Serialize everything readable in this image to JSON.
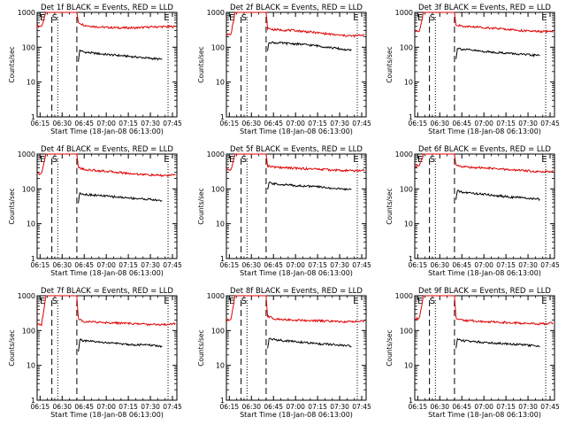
{
  "chart_data": [
    {
      "type": "line",
      "title": "Det 1f BLACK = Events, RED = LLD",
      "xlabel": "Start Time (18-Jan-08 06:13:00)",
      "ylabel": "Counts/sec",
      "yscale": "log",
      "ylim": [
        1,
        1000
      ],
      "xticks": [
        "06:15",
        "06:30",
        "06:45",
        "07:00",
        "07:15",
        "07:30",
        "07:45"
      ],
      "yticks": [
        "1",
        "10",
        "100",
        "1000"
      ],
      "markers": {
        "S": "06:25",
        "E": "07:41"
      },
      "dashed_lines": [
        "06:23",
        "06:40"
      ],
      "dotted_lines": [
        "06:27",
        "07:42"
      ],
      "series": [
        {
          "color": "#e00000",
          "x": [
            "06:13",
            "06:16",
            "06:18",
            "06:19",
            "06:20",
            "06:21",
            "06:40",
            "06:41",
            "06:45",
            "06:50",
            "07:00",
            "07:10",
            "07:20",
            "07:30",
            "07:40",
            "07:47"
          ],
          "values": [
            400,
            400,
            700,
            1000,
            1000,
            1000,
            1000,
            520,
            430,
            400,
            370,
            360,
            360,
            380,
            390,
            390
          ]
        },
        {
          "color": "#000000",
          "x": [
            "06:41",
            "06:42",
            "06:45",
            "07:00",
            "07:15",
            "07:30",
            "07:38"
          ],
          "values": [
            40,
            82,
            72,
            62,
            55,
            48,
            45
          ]
        }
      ]
    },
    {
      "type": "line",
      "title": "Det 2f BLACK = Events, RED = LLD",
      "xlabel": "Start Time (18-Jan-08 06:13:00)",
      "ylabel": "Counts/sec",
      "yscale": "log",
      "ylim": [
        1,
        1000
      ],
      "xticks": [
        "06:15",
        "06:30",
        "06:45",
        "07:00",
        "07:15",
        "07:30",
        "07:45"
      ],
      "yticks": [
        "1",
        "10",
        "100",
        "1000"
      ],
      "markers": {
        "S": "06:25",
        "E": "07:41"
      },
      "dashed_lines": [
        "06:23",
        "06:40"
      ],
      "dotted_lines": [
        "06:27",
        "07:42"
      ],
      "series": [
        {
          "color": "#e00000",
          "x": [
            "06:13",
            "06:16",
            "06:18",
            "06:19",
            "06:20",
            "06:21",
            "06:40",
            "06:41",
            "06:45",
            "07:00",
            "07:15",
            "07:30",
            "07:40",
            "07:47"
          ],
          "values": [
            230,
            230,
            600,
            1000,
            1000,
            1000,
            1000,
            350,
            320,
            300,
            260,
            220,
            210,
            230
          ]
        },
        {
          "color": "#000000",
          "x": [
            "06:41",
            "06:42",
            "06:45",
            "07:00",
            "07:15",
            "07:30",
            "07:38"
          ],
          "values": [
            80,
            140,
            135,
            125,
            110,
            90,
            80
          ]
        }
      ]
    },
    {
      "type": "line",
      "title": "Det 3f BLACK = Events, RED = LLD",
      "xlabel": "Start Time (18-Jan-08 06:13:00)",
      "ylabel": "Counts/sec",
      "yscale": "log",
      "ylim": [
        1,
        1000
      ],
      "xticks": [
        "06:15",
        "06:30",
        "06:45",
        "07:00",
        "07:15",
        "07:30",
        "07:45"
      ],
      "yticks": [
        "1",
        "10",
        "100",
        "1000"
      ],
      "markers": {
        "S": "06:25",
        "E": "07:41"
      },
      "dashed_lines": [
        "06:23",
        "06:40"
      ],
      "dotted_lines": [
        "06:27",
        "07:42"
      ],
      "series": [
        {
          "color": "#e00000",
          "x": [
            "06:13",
            "06:16",
            "06:18",
            "06:19",
            "06:20",
            "06:21",
            "06:40",
            "06:41",
            "06:45",
            "07:00",
            "07:15",
            "07:30",
            "07:40",
            "07:47"
          ],
          "values": [
            280,
            280,
            650,
            1000,
            1000,
            1000,
            1000,
            450,
            400,
            370,
            330,
            290,
            280,
            290
          ]
        },
        {
          "color": "#000000",
          "x": [
            "06:41",
            "06:42",
            "06:45",
            "07:00",
            "07:15",
            "07:30",
            "07:38"
          ],
          "values": [
            45,
            95,
            88,
            75,
            68,
            60,
            58
          ]
        }
      ]
    },
    {
      "type": "line",
      "title": "Det 4f BLACK = Events, RED = LLD",
      "xlabel": "Start Time (18-Jan-08 06:13:00)",
      "ylabel": "Counts/sec",
      "yscale": "log",
      "ylim": [
        1,
        1000
      ],
      "xticks": [
        "06:15",
        "06:30",
        "06:45",
        "07:00",
        "07:15",
        "07:30",
        "07:45"
      ],
      "yticks": [
        "1",
        "10",
        "100",
        "1000"
      ],
      "markers": {
        "S": "06:25",
        "E": "07:41"
      },
      "dashed_lines": [
        "06:23",
        "06:40"
      ],
      "dotted_lines": [
        "06:27",
        "07:42"
      ],
      "series": [
        {
          "color": "#e00000",
          "x": [
            "06:13",
            "06:16",
            "06:18",
            "06:19",
            "06:20",
            "06:21",
            "06:40",
            "06:41",
            "06:45",
            "07:00",
            "07:15",
            "07:30",
            "07:40",
            "07:47"
          ],
          "values": [
            270,
            270,
            650,
            1000,
            1000,
            1000,
            1000,
            420,
            360,
            320,
            280,
            250,
            240,
            250
          ]
        },
        {
          "color": "#000000",
          "x": [
            "06:41",
            "06:42",
            "06:45",
            "07:00",
            "07:15",
            "07:30",
            "07:38"
          ],
          "values": [
            40,
            78,
            70,
            62,
            55,
            50,
            45
          ]
        }
      ]
    },
    {
      "type": "line",
      "title": "Det 5f BLACK = Events, RED = LLD",
      "xlabel": "Start Time (18-Jan-08 06:13:00)",
      "ylabel": "Counts/sec",
      "yscale": "log",
      "ylim": [
        1,
        1000
      ],
      "xticks": [
        "06:15",
        "06:30",
        "06:45",
        "07:00",
        "07:15",
        "07:30",
        "07:45"
      ],
      "yticks": [
        "1",
        "10",
        "100",
        "1000"
      ],
      "markers": {
        "S": "06:25",
        "E": "07:41"
      },
      "dashed_lines": [
        "06:23",
        "06:40"
      ],
      "dotted_lines": [
        "06:27",
        "07:42"
      ],
      "series": [
        {
          "color": "#e00000",
          "x": [
            "06:13",
            "06:16",
            "06:18",
            "06:19",
            "06:20",
            "06:21",
            "06:40",
            "06:41",
            "06:45",
            "07:00",
            "07:15",
            "07:30",
            "07:40",
            "07:47"
          ],
          "values": [
            350,
            350,
            700,
            1000,
            1000,
            1000,
            1000,
            460,
            420,
            390,
            370,
            340,
            330,
            340
          ]
        },
        {
          "color": "#000000",
          "x": [
            "06:41",
            "06:42",
            "06:45",
            "07:00",
            "07:15",
            "07:30",
            "07:38"
          ],
          "values": [
            90,
            150,
            140,
            125,
            115,
            100,
            95
          ]
        }
      ]
    },
    {
      "type": "line",
      "title": "Det 6f BLACK = Events, RED = LLD",
      "xlabel": "Start Time (18-Jan-08 06:13:00)",
      "ylabel": "Counts/sec",
      "yscale": "log",
      "ylim": [
        1,
        1000
      ],
      "xticks": [
        "06:15",
        "06:30",
        "06:45",
        "07:00",
        "07:15",
        "07:30",
        "07:45"
      ],
      "yticks": [
        "1",
        "10",
        "100",
        "1000"
      ],
      "markers": {
        "S": "06:25",
        "E": "07:41"
      },
      "dashed_lines": [
        "06:23",
        "06:40"
      ],
      "dotted_lines": [
        "06:27",
        "07:42"
      ],
      "series": [
        {
          "color": "#e00000",
          "x": [
            "06:13",
            "06:16",
            "06:18",
            "06:19",
            "06:20",
            "06:21",
            "06:40",
            "06:41",
            "06:45",
            "07:00",
            "07:15",
            "07:30",
            "07:40",
            "07:47"
          ],
          "values": [
            450,
            450,
            750,
            1000,
            1000,
            1000,
            1000,
            480,
            430,
            400,
            360,
            330,
            310,
            320
          ]
        },
        {
          "color": "#000000",
          "x": [
            "06:41",
            "06:42",
            "06:45",
            "07:00",
            "07:15",
            "07:30",
            "07:38"
          ],
          "values": [
            50,
            88,
            80,
            70,
            60,
            54,
            50
          ]
        }
      ]
    },
    {
      "type": "line",
      "title": "Det 7f BLACK = Events, RED = LLD",
      "xlabel": "Start Time (18-Jan-08 06:13:00)",
      "ylabel": "Counts/sec",
      "yscale": "log",
      "ylim": [
        1,
        1000
      ],
      "xticks": [
        "06:15",
        "06:30",
        "06:45",
        "07:00",
        "07:15",
        "07:30",
        "07:45"
      ],
      "yticks": [
        "1",
        "10",
        "100",
        "1000"
      ],
      "markers": {
        "S": "06:25",
        "E": "07:41"
      },
      "dashed_lines": [
        "06:23",
        "06:40"
      ],
      "dotted_lines": [
        "06:27",
        "07:42"
      ],
      "series": [
        {
          "color": "#e00000",
          "x": [
            "06:13",
            "06:16",
            "06:18",
            "06:19",
            "06:20",
            "06:21",
            "06:40",
            "06:41",
            "06:45",
            "07:00",
            "07:15",
            "07:30",
            "07:40",
            "07:47"
          ],
          "values": [
            150,
            150,
            500,
            1000,
            1000,
            1000,
            1000,
            220,
            180,
            170,
            160,
            150,
            150,
            160
          ]
        },
        {
          "color": "#000000",
          "x": [
            "06:41",
            "06:42",
            "06:45",
            "07:00",
            "07:15",
            "07:30",
            "07:38"
          ],
          "values": [
            25,
            55,
            50,
            45,
            40,
            38,
            35
          ]
        }
      ]
    },
    {
      "type": "line",
      "title": "Det 8f BLACK = Events, RED = LLD",
      "xlabel": "Start Time (18-Jan-08 06:13:00)",
      "ylabel": "Counts/sec",
      "yscale": "log",
      "ylim": [
        1,
        1000
      ],
      "xticks": [
        "06:15",
        "06:30",
        "06:45",
        "07:00",
        "07:15",
        "07:30",
        "07:45"
      ],
      "yticks": [
        "1",
        "10",
        "100",
        "1000"
      ],
      "markers": {
        "S": "06:25",
        "E": "07:41"
      },
      "dashed_lines": [
        "06:23",
        "06:40"
      ],
      "dotted_lines": [
        "06:27",
        "07:42"
      ],
      "series": [
        {
          "color": "#e00000",
          "x": [
            "06:13",
            "06:16",
            "06:18",
            "06:19",
            "06:20",
            "06:21",
            "06:40",
            "06:41",
            "06:45",
            "07:00",
            "07:15",
            "07:30",
            "07:40",
            "07:47"
          ],
          "values": [
            200,
            200,
            600,
            1000,
            1000,
            1000,
            1000,
            260,
            220,
            200,
            190,
            180,
            180,
            190
          ]
        },
        {
          "color": "#000000",
          "x": [
            "06:41",
            "06:42",
            "06:45",
            "07:00",
            "07:15",
            "07:30",
            "07:38"
          ],
          "values": [
            30,
            60,
            55,
            48,
            42,
            38,
            35
          ]
        }
      ]
    },
    {
      "type": "line",
      "title": "Det 9f BLACK = Events, RED = LLD",
      "xlabel": "Start Time (18-Jan-08 06:13:00)",
      "ylabel": "Counts/sec",
      "yscale": "log",
      "ylim": [
        1,
        1000
      ],
      "xticks": [
        "06:15",
        "06:30",
        "06:45",
        "07:00",
        "07:15",
        "07:30",
        "07:45"
      ],
      "yticks": [
        "1",
        "10",
        "100",
        "1000"
      ],
      "markers": {
        "S": "06:25",
        "E": "07:41"
      },
      "dashed_lines": [
        "06:23",
        "06:40"
      ],
      "dotted_lines": [
        "06:27",
        "07:42"
      ],
      "series": [
        {
          "color": "#e00000",
          "x": [
            "06:13",
            "06:16",
            "06:18",
            "06:19",
            "06:20",
            "06:21",
            "06:40",
            "06:41",
            "06:45",
            "07:00",
            "07:15",
            "07:30",
            "07:40",
            "07:47"
          ],
          "values": [
            220,
            220,
            600,
            1000,
            1000,
            1000,
            1000,
            230,
            200,
            180,
            170,
            160,
            155,
            165
          ]
        },
        {
          "color": "#000000",
          "x": [
            "06:41",
            "06:42",
            "06:45",
            "07:00",
            "07:15",
            "07:30",
            "07:38"
          ],
          "values": [
            30,
            58,
            52,
            46,
            42,
            38,
            35
          ]
        }
      ]
    }
  ]
}
